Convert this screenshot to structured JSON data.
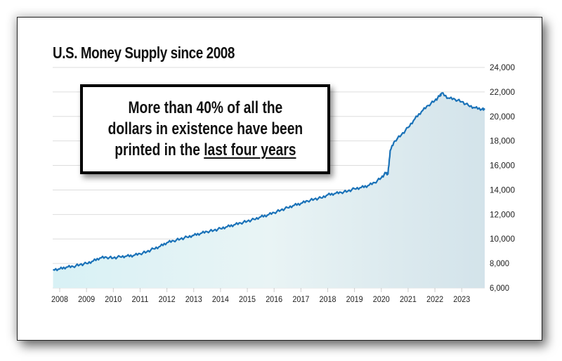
{
  "title": "U.S. Money Supply since 2008",
  "callout": {
    "line1": "More than 40% of all the",
    "line2": "dollars in existence have been",
    "line3_prefix": "printed in the ",
    "line3_underlined": "last four years"
  },
  "colors": {
    "line": "#1a72b8",
    "fill_left": "#d8f1f5",
    "fill_right": "#d5e4ea",
    "grid": "#dddddd"
  },
  "chart_data": {
    "type": "area",
    "title": "U.S. Money Supply since 2008",
    "xlabel": "",
    "ylabel": "",
    "ylim": [
      6000,
      24000
    ],
    "y_ticks": [
      "6,000",
      "8,000",
      "10,000",
      "12,000",
      "14,000",
      "16,000",
      "18,000",
      "20,000",
      "22,000",
      "24,000"
    ],
    "x_ticks": [
      "2008",
      "2009",
      "2010",
      "2011",
      "2012",
      "2013",
      "2014",
      "2015",
      "2016",
      "2017",
      "2018",
      "2019",
      "2020",
      "2021",
      "2022",
      "2023"
    ],
    "grid": true,
    "legend": null,
    "annotation": "More than 40% of all the dollars in existence have been printed in the last four years",
    "x": [
      2007.75,
      2008.0,
      2008.25,
      2008.5,
      2008.75,
      2009.0,
      2009.25,
      2009.5,
      2009.75,
      2010.0,
      2010.25,
      2010.5,
      2010.75,
      2011.0,
      2011.25,
      2011.5,
      2011.75,
      2012.0,
      2012.25,
      2012.5,
      2012.75,
      2013.0,
      2013.25,
      2013.5,
      2013.75,
      2014.0,
      2014.25,
      2014.5,
      2014.75,
      2015.0,
      2015.25,
      2015.5,
      2015.75,
      2016.0,
      2016.25,
      2016.5,
      2016.75,
      2017.0,
      2017.25,
      2017.5,
      2017.75,
      2018.0,
      2018.25,
      2018.5,
      2018.75,
      2019.0,
      2019.25,
      2019.5,
      2019.75,
      2020.0,
      2020.17,
      2020.25,
      2020.33,
      2020.5,
      2020.75,
      2021.0,
      2021.25,
      2021.5,
      2021.75,
      2022.0,
      2022.17,
      2022.25,
      2022.5,
      2022.75,
      2023.0,
      2023.25,
      2023.5,
      2023.75,
      2023.9
    ],
    "values": [
      7500,
      7550,
      7700,
      7750,
      7900,
      8000,
      8200,
      8450,
      8500,
      8450,
      8550,
      8600,
      8650,
      8800,
      8950,
      9200,
      9400,
      9700,
      9850,
      10000,
      10150,
      10300,
      10450,
      10600,
      10700,
      10850,
      11000,
      11150,
      11300,
      11450,
      11600,
      11800,
      11950,
      12150,
      12350,
      12550,
      12750,
      12900,
      13100,
      13250,
      13350,
      13600,
      13700,
      13800,
      13900,
      14100,
      14200,
      14350,
      14600,
      15000,
      15400,
      15300,
      17200,
      18000,
      18500,
      19100,
      19800,
      20400,
      20900,
      21300,
      21650,
      21900,
      21500,
      21400,
      21200,
      20900,
      20700,
      20600,
      20550
    ]
  }
}
